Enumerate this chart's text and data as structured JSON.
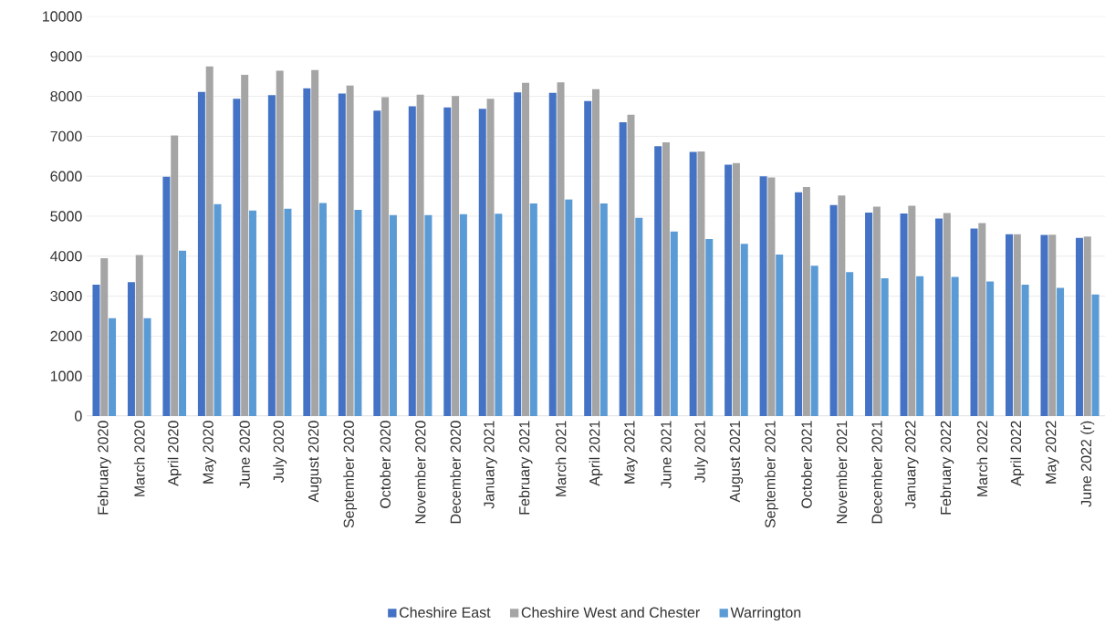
{
  "chart_data": {
    "type": "bar",
    "categories": [
      "February 2020",
      "March 2020",
      "April 2020",
      "May 2020",
      "June 2020",
      "July 2020",
      "August 2020",
      "September 2020",
      "October 2020",
      "November 2020",
      "December 2020",
      "January 2021",
      "February 2021",
      "March 2021",
      "April 2021",
      "May 2021",
      "June 2021",
      "July 2021",
      "August 2021",
      "September 2021",
      "October 2021",
      "November 2021",
      "December 2021",
      "January 2022",
      "February 2022",
      "March 2022",
      "April 2022",
      "May 2022",
      "June 2022 (r)"
    ],
    "series": [
      {
        "name": "Cheshire East",
        "color": "#4472c4",
        "values": [
          3290,
          3350,
          5990,
          8110,
          7940,
          8030,
          8200,
          8070,
          7640,
          7750,
          7720,
          7690,
          8100,
          8090,
          7880,
          7350,
          6750,
          6610,
          6290,
          6000,
          5600,
          5280,
          5090,
          5070,
          4940,
          4690,
          4550,
          4530,
          4460
        ]
      },
      {
        "name": "Cheshire West and Chester",
        "color": "#a5a5a5",
        "values": [
          3950,
          4030,
          7020,
          8750,
          8540,
          8640,
          8660,
          8270,
          7980,
          8040,
          8010,
          7940,
          8340,
          8350,
          8180,
          7540,
          6850,
          6620,
          6330,
          5970,
          5730,
          5520,
          5240,
          5260,
          5080,
          4830,
          4550,
          4540,
          4490
        ]
      },
      {
        "name": "Warrington",
        "color": "#5b9bd5",
        "values": [
          2450,
          2450,
          4140,
          5300,
          5140,
          5190,
          5330,
          5160,
          5030,
          5030,
          5050,
          5060,
          5320,
          5420,
          5320,
          4960,
          4620,
          4430,
          4310,
          4040,
          3760,
          3600,
          3450,
          3500,
          3480,
          3370,
          3290,
          3210,
          3040
        ]
      }
    ],
    "ylim": [
      0,
      10000
    ],
    "yticks": [
      0,
      1000,
      2000,
      3000,
      4000,
      5000,
      6000,
      7000,
      8000,
      9000,
      10000
    ],
    "grid": "y",
    "legend": "bottom"
  }
}
